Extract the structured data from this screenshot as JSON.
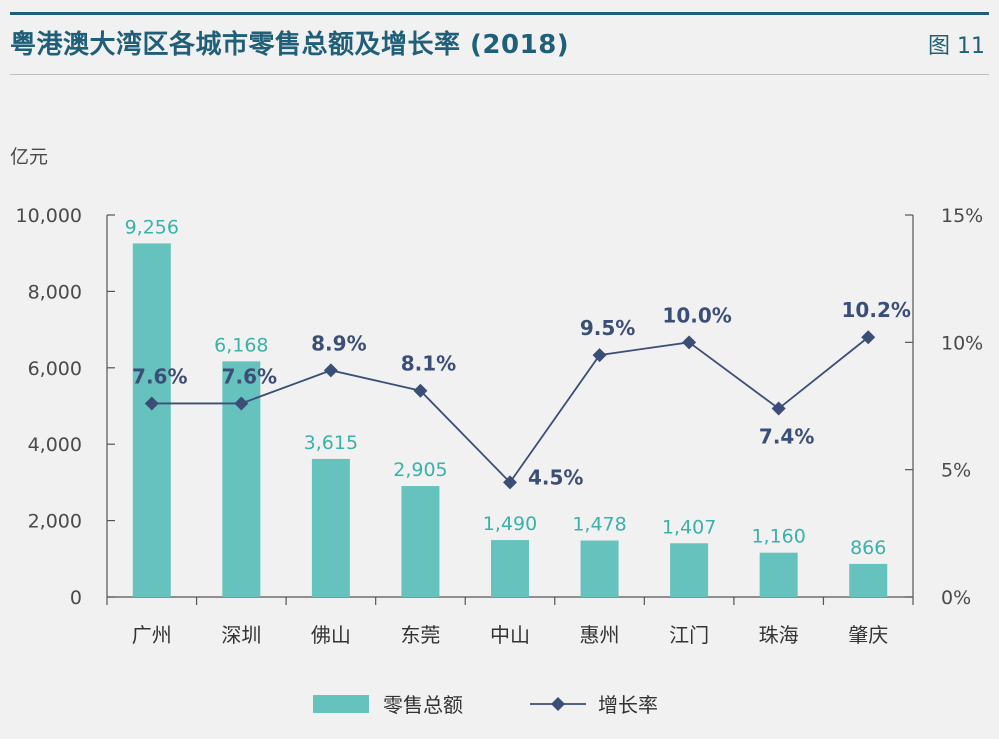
{
  "header": {
    "title": "粤港澳大湾区各城市零售总额及增长率 (2018)",
    "figure_label": "图 11"
  },
  "colors": {
    "title": "#1f5f7a",
    "bar": "#66c2bc",
    "bar_label": "#3ab2aa",
    "line": "#3b4e78"
  },
  "chart_data": {
    "type": "bar",
    "title": "粤港澳大湾区各城市零售总额及增长率 (2018)",
    "ylabel": "亿元",
    "categories": [
      "广州",
      "深圳",
      "佛山",
      "东莞",
      "中山",
      "惠州",
      "江门",
      "珠海",
      "肇庆"
    ],
    "y_left": {
      "min": 0,
      "max": 10000,
      "ticks": [
        "0",
        "2,000",
        "4,000",
        "6,000",
        "8,000",
        "10,000"
      ],
      "tick_values": [
        0,
        2000,
        4000,
        6000,
        8000,
        10000
      ]
    },
    "y_right": {
      "min": 0,
      "max": 15,
      "ticks": [
        "0%",
        "5%",
        "10%",
        "15%"
      ],
      "tick_values": [
        0,
        5,
        10,
        15
      ]
    },
    "series": [
      {
        "name": "零售总额",
        "type": "bar",
        "axis": "left",
        "values": [
          9256,
          6168,
          3615,
          2905,
          1490,
          1478,
          1407,
          1160,
          866
        ],
        "labels": [
          "9,256",
          "6,168",
          "3,615",
          "2,905",
          "1,490",
          "1,478",
          "1,407",
          "1,160",
          "866"
        ]
      },
      {
        "name": "增长率",
        "type": "line",
        "axis": "right",
        "marker": "diamond",
        "values": [
          7.6,
          7.6,
          8.9,
          8.1,
          4.5,
          9.5,
          10.0,
          7.4,
          10.2
        ],
        "labels": [
          "7.6%",
          "7.6%",
          "8.9%",
          "8.1%",
          "4.5%",
          "9.5%",
          "10.0%",
          "7.4%",
          "10.2%"
        ],
        "label_positions": [
          "above",
          "above",
          "above",
          "above",
          "right",
          "above",
          "above",
          "below",
          "above"
        ]
      }
    ],
    "legend": {
      "position": "bottom-center",
      "entries": [
        "零售总额",
        "增长率"
      ]
    },
    "grid": false
  }
}
